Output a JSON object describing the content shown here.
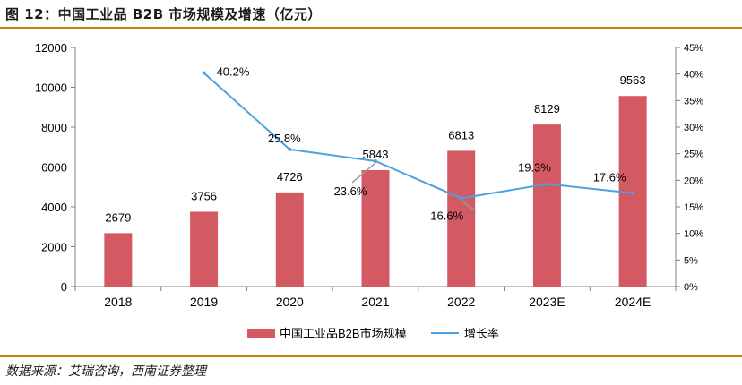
{
  "header": {
    "title": "图 12：中国工业品 B2B 市场规模及增速（亿元）"
  },
  "source": "数据来源：艾瑞咨询，西南证券整理",
  "colors": {
    "bar": "#d35a62",
    "line": "#4aa3df",
    "rule": "#b8860b"
  },
  "chart_data": {
    "type": "bar+line",
    "categories": [
      "2018",
      "2019",
      "2020",
      "2021",
      "2022",
      "2023E",
      "2024E"
    ],
    "series": [
      {
        "name": "中国工业品B2B市场规模",
        "type": "bar",
        "axis": "left",
        "values": [
          2679,
          3756,
          4726,
          5843,
          6813,
          8129,
          9563
        ],
        "labels": [
          "2679",
          "3756",
          "4726",
          "5843",
          "6813",
          "8129",
          "9563"
        ]
      },
      {
        "name": "增长率",
        "type": "line",
        "axis": "right",
        "values": [
          null,
          40.2,
          25.8,
          23.6,
          16.6,
          19.3,
          17.6
        ],
        "labels": [
          "",
          "40.2%",
          "25.8%",
          "23.6%",
          "16.6%",
          "19.3%",
          "17.6%"
        ]
      }
    ],
    "y_left": {
      "ylim": [
        0,
        12000
      ],
      "ticks": [
        "0",
        "2000",
        "4000",
        "6000",
        "8000",
        "10000",
        "12000"
      ]
    },
    "y_right": {
      "ylim": [
        0,
        45
      ],
      "ticks": [
        "0%",
        "5%",
        "10%",
        "15%",
        "20%",
        "25%",
        "30%",
        "35%",
        "40%",
        "45%"
      ]
    },
    "legend": "bottom"
  }
}
